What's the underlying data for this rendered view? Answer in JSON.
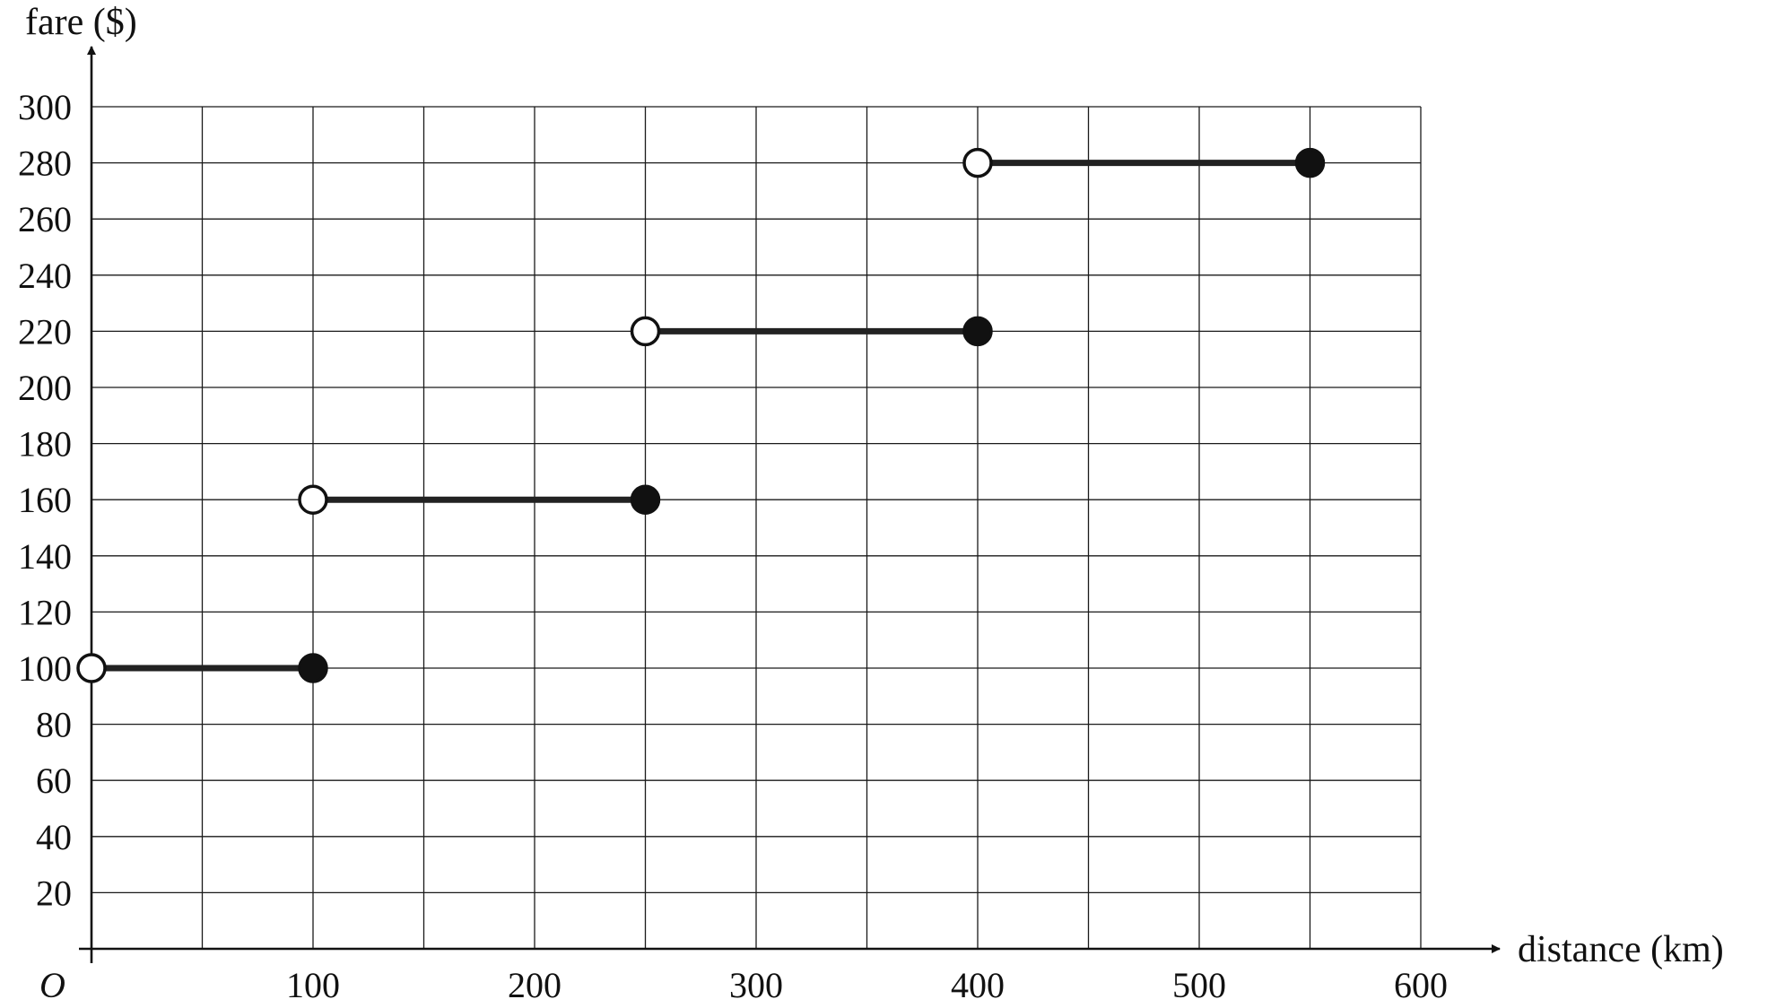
{
  "chart_data": {
    "type": "line",
    "subtype": "step-function",
    "title": "",
    "xlabel": "distance (km)",
    "ylabel": "fare ($)",
    "origin_label": "O",
    "xlim": [
      0,
      600
    ],
    "ylim": [
      0,
      300
    ],
    "x_grid_step": 50,
    "y_grid_step": 20,
    "x_ticks": [
      100,
      200,
      300,
      400,
      500,
      600
    ],
    "y_ticks": [
      20,
      40,
      60,
      80,
      100,
      120,
      140,
      160,
      180,
      200,
      220,
      240,
      260,
      280,
      300
    ],
    "grid": true,
    "segments": [
      {
        "x_start": 0,
        "x_end": 100,
        "y": 100,
        "start_open": true,
        "end_closed": true
      },
      {
        "x_start": 100,
        "x_end": 250,
        "y": 160,
        "start_open": true,
        "end_closed": true
      },
      {
        "x_start": 250,
        "x_end": 400,
        "y": 220,
        "start_open": true,
        "end_closed": true
      },
      {
        "x_start": 400,
        "x_end": 550,
        "y": 280,
        "start_open": true,
        "end_closed": true
      }
    ],
    "colors": {
      "line": "#222222",
      "grid": "#1a1a1a",
      "open_fill": "#ffffff",
      "closed_fill": "#111111"
    }
  }
}
